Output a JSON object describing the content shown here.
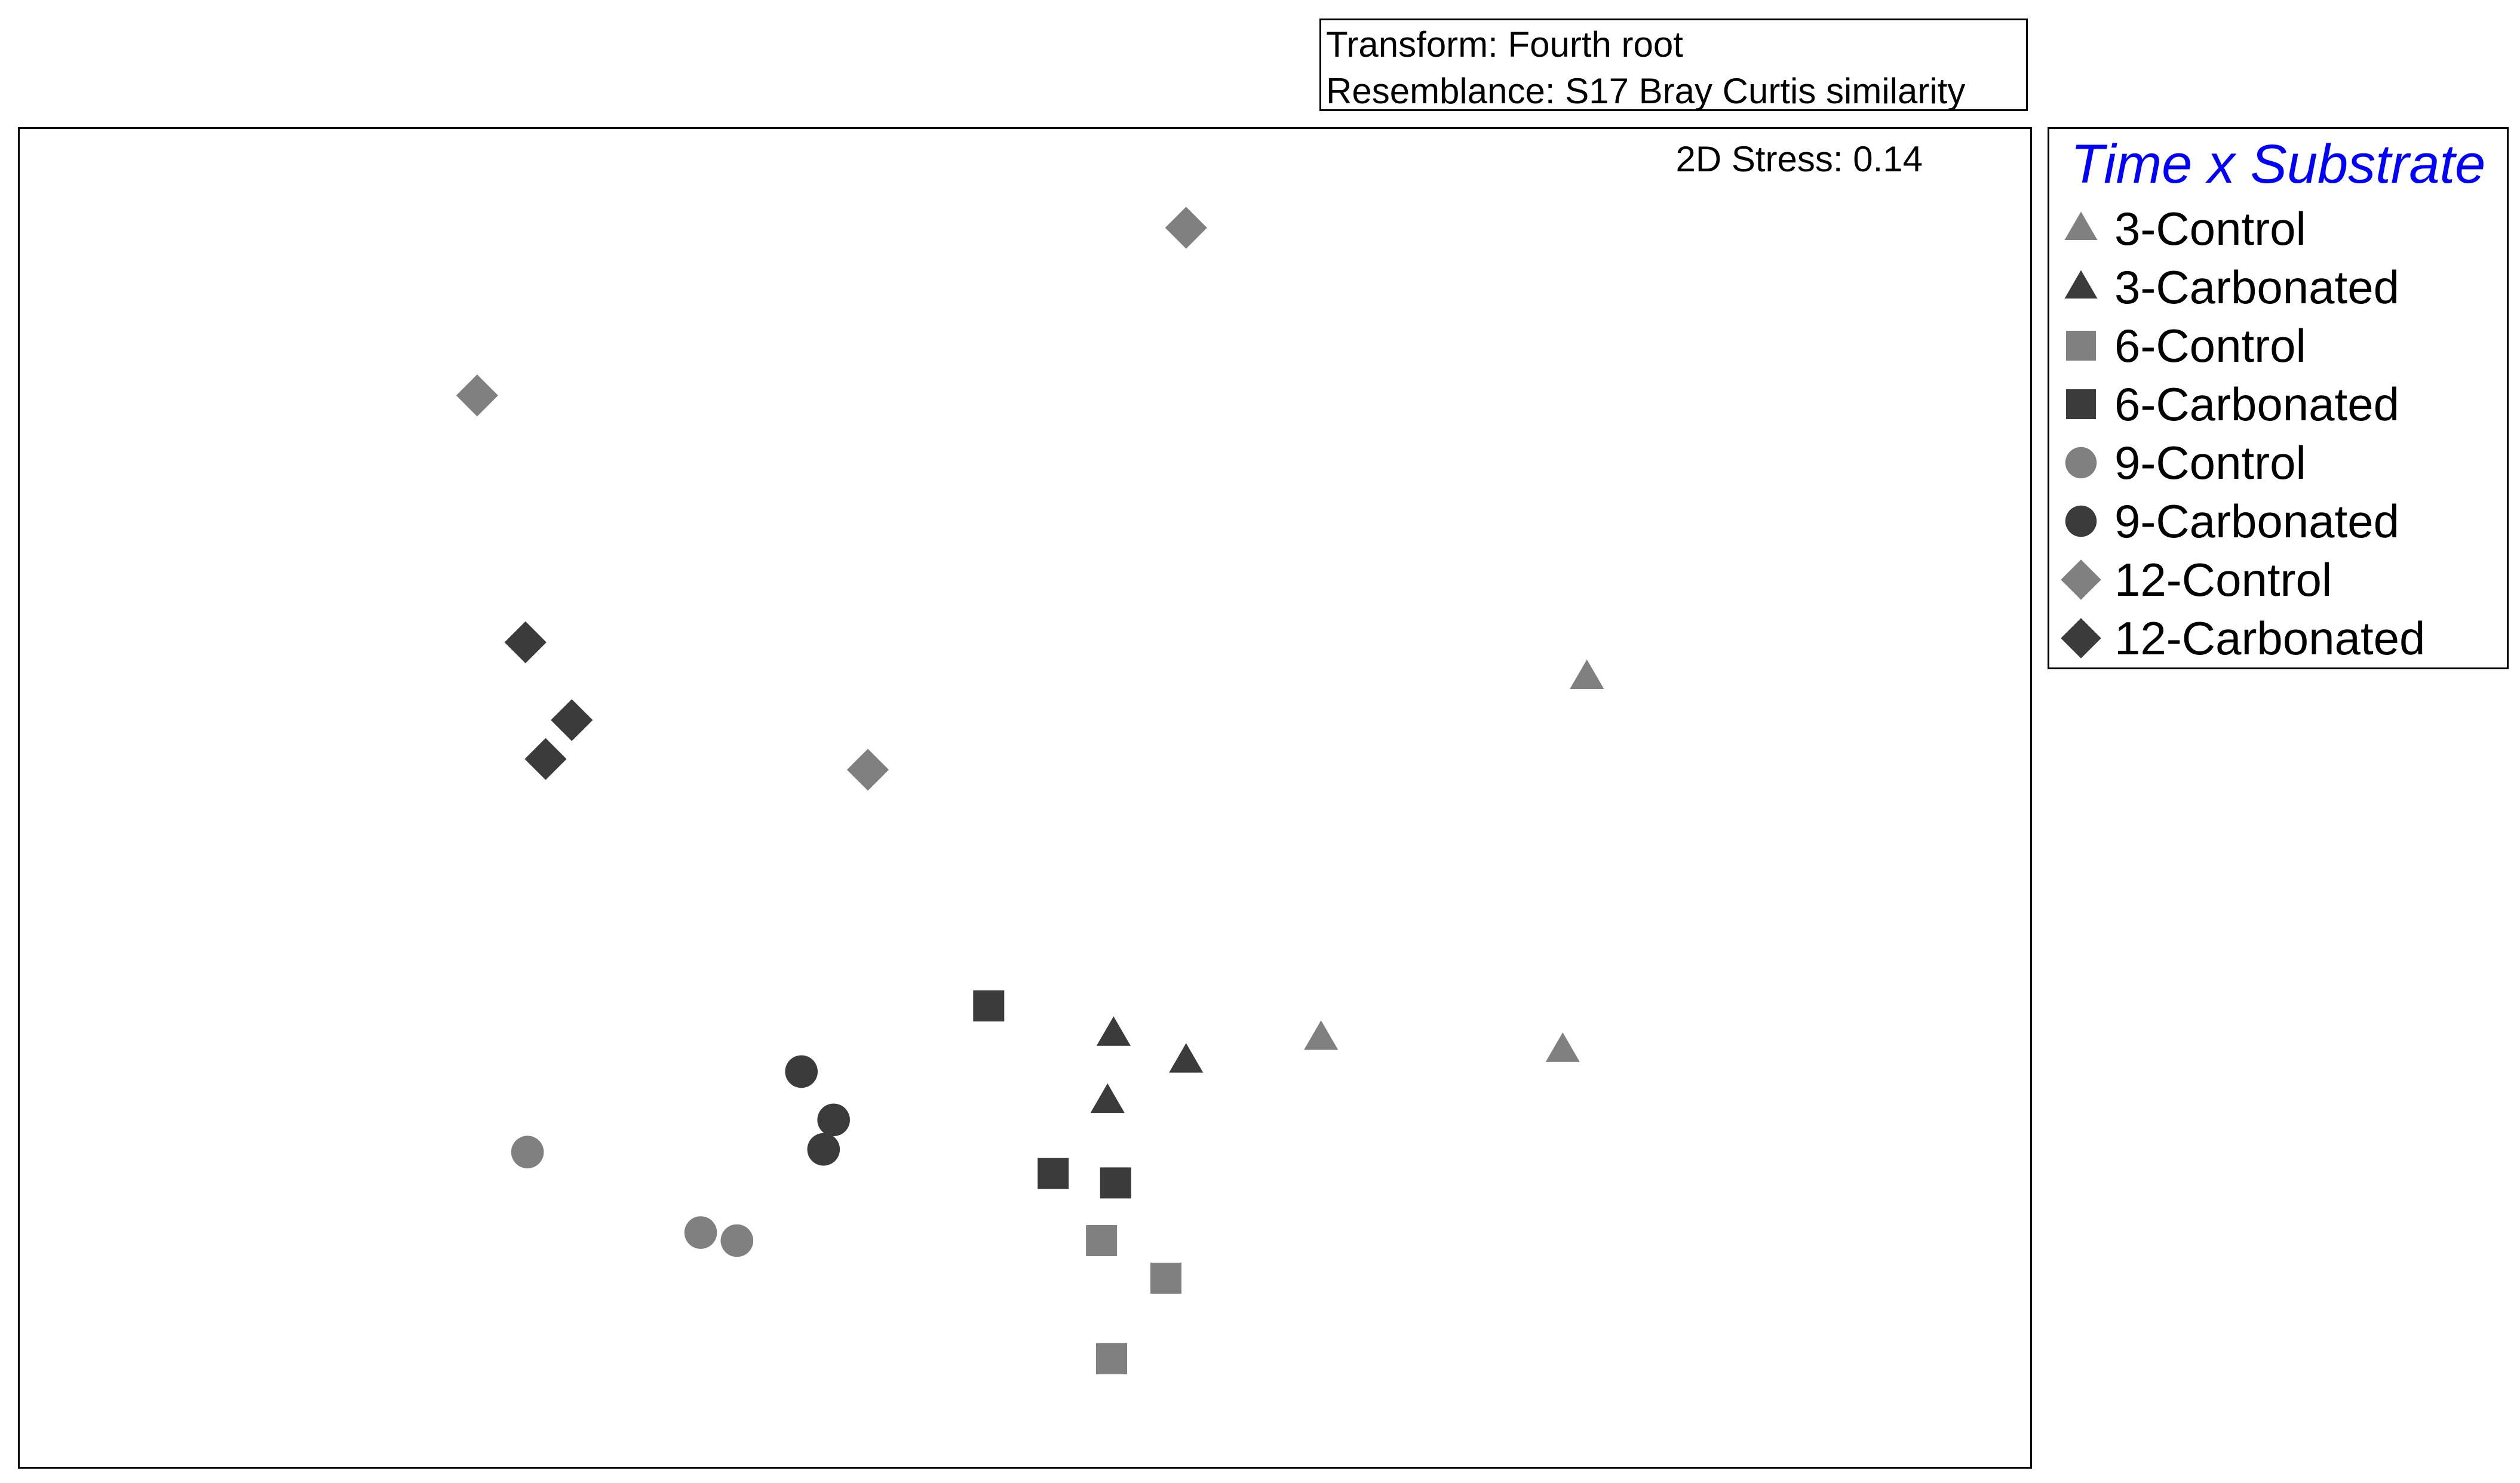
{
  "info_box": {
    "line1": "Transform: Fourth root",
    "line2": "Resemblance: S17 Bray Curtis similarity"
  },
  "stress_label": "2D Stress: 0.14",
  "colors": {
    "control": "#808080",
    "carbonated": "#3b3b3b",
    "legend_title": "#0000ff"
  },
  "chart_data": {
    "type": "scatter",
    "title": "",
    "xlabel": "",
    "ylabel": "",
    "xlim": [
      0,
      100
    ],
    "ylim": [
      0,
      100
    ],
    "grid": false,
    "legend_title": "Time x Substrate",
    "legend_placement": "right",
    "series": [
      {
        "name": "3-Control",
        "marker": "triangle",
        "color": "#808080",
        "points": [
          [
            77.9,
            59.0
          ],
          [
            64.7,
            32.1
          ],
          [
            76.7,
            31.2
          ]
        ]
      },
      {
        "name": "3-Carbonated",
        "marker": "triangle",
        "color": "#3b3b3b",
        "points": [
          [
            54.4,
            32.4
          ],
          [
            58.0,
            30.4
          ],
          [
            54.1,
            27.4
          ]
        ]
      },
      {
        "name": "6-Control",
        "marker": "square",
        "color": "#808080",
        "points": [
          [
            53.8,
            17.0
          ],
          [
            57.0,
            14.2
          ],
          [
            54.3,
            8.2
          ]
        ]
      },
      {
        "name": "6-Carbonated",
        "marker": "square",
        "color": "#3b3b3b",
        "points": [
          [
            48.2,
            34.5
          ],
          [
            51.4,
            22.0
          ],
          [
            54.5,
            21.3
          ]
        ]
      },
      {
        "name": "9-Control",
        "marker": "circle",
        "color": "#808080",
        "points": [
          [
            25.3,
            23.6
          ],
          [
            33.9,
            17.6
          ],
          [
            35.7,
            17.0
          ]
        ]
      },
      {
        "name": "9-Carbonated",
        "marker": "circle",
        "color": "#3b3b3b",
        "points": [
          [
            38.9,
            29.6
          ],
          [
            40.5,
            26.0
          ],
          [
            40.0,
            23.8
          ]
        ]
      },
      {
        "name": "12-Control",
        "marker": "diamond",
        "color": "#808080",
        "points": [
          [
            58.0,
            92.5
          ],
          [
            22.8,
            80.0
          ],
          [
            42.2,
            52.1
          ]
        ]
      },
      {
        "name": "12-Carbonated",
        "marker": "diamond",
        "color": "#3b3b3b",
        "points": [
          [
            25.2,
            61.6
          ],
          [
            27.5,
            55.8
          ],
          [
            26.2,
            52.9
          ]
        ]
      }
    ]
  }
}
